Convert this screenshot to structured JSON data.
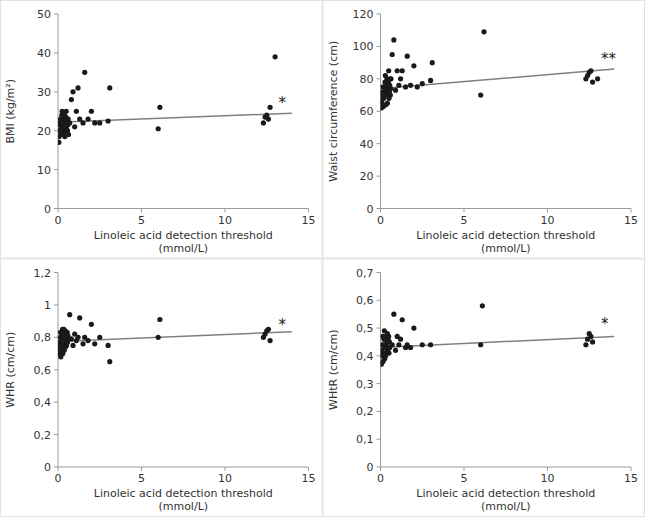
{
  "chart_data": [
    {
      "type": "scatter",
      "xlabel": "Linoleic acid detection threshold\n(mmol/L)",
      "ylabel": "BMI (kg/m²)",
      "xlim": [
        0,
        15
      ],
      "xticks": [
        0,
        5,
        10,
        15
      ],
      "ylim": [
        0,
        50
      ],
      "yticks": [
        0,
        10,
        20,
        30,
        40,
        50
      ],
      "grid": false,
      "series": [
        {
          "type": "scatter",
          "color": "#1a1a1a",
          "x": [
            0.05,
            0.07,
            0.09,
            0.11,
            0.13,
            0.15,
            0.17,
            0.19,
            0.21,
            0.23,
            0.25,
            0.27,
            0.29,
            0.31,
            0.33,
            0.35,
            0.37,
            0.39,
            0.41,
            0.43,
            0.45,
            0.47,
            0.49,
            0.51,
            0.53,
            0.55,
            0.57,
            0.59,
            0.61,
            0.63,
            0.7,
            0.8,
            0.9,
            1.0,
            1.1,
            1.2,
            1.3,
            1.5,
            1.6,
            1.8,
            2.0,
            2.2,
            2.5,
            3.0,
            3.1,
            6.0,
            6.1,
            12.3,
            12.4,
            12.5,
            12.6,
            12.7,
            13.0
          ],
          "values": [
            17.0,
            18.5,
            20.0,
            21.5,
            22.0,
            23.0,
            19.0,
            20.5,
            22.5,
            24.0,
            25.0,
            21.0,
            22.0,
            23.5,
            19.5,
            21.0,
            22.5,
            24.0,
            18.5,
            20.0,
            22.0,
            23.5,
            25.0,
            20.5,
            22.0,
            23.0,
            20.0,
            21.5,
            23.0,
            19.0,
            22.0,
            28.0,
            30.0,
            21.0,
            25.0,
            31.0,
            23.0,
            22.0,
            35.0,
            23.0,
            25.0,
            22.0,
            22.0,
            22.5,
            31.0,
            20.5,
            26.0,
            22.0,
            23.5,
            24.0,
            23.0,
            26.0,
            39.0
          ]
        },
        {
          "type": "line",
          "color": "#808080",
          "x": [
            0,
            14
          ],
          "values": [
            22.2,
            24.5
          ]
        }
      ],
      "annotations": [
        {
          "text": "*",
          "x": 13.2,
          "y": 27.0
        }
      ]
    },
    {
      "type": "scatter",
      "xlabel": "Linoleic acid detection threshold\n(mmol/L)",
      "ylabel": "Waist circumference (cm)",
      "xlim": [
        0,
        15
      ],
      "xticks": [
        0,
        5,
        10,
        15
      ],
      "ylim": [
        0,
        120
      ],
      "yticks": [
        0,
        20,
        40,
        60,
        80,
        100,
        120
      ],
      "grid": false,
      "series": [
        {
          "type": "scatter",
          "color": "#1a1a1a",
          "x": [
            0.05,
            0.07,
            0.09,
            0.11,
            0.13,
            0.15,
            0.17,
            0.19,
            0.21,
            0.23,
            0.25,
            0.27,
            0.29,
            0.31,
            0.33,
            0.35,
            0.37,
            0.39,
            0.41,
            0.43,
            0.45,
            0.47,
            0.49,
            0.51,
            0.53,
            0.55,
            0.57,
            0.59,
            0.61,
            0.63,
            0.7,
            0.8,
            0.9,
            1.0,
            1.1,
            1.2,
            1.3,
            1.5,
            1.6,
            1.8,
            2.0,
            2.2,
            2.5,
            3.0,
            3.1,
            6.0,
            6.2,
            12.3,
            12.4,
            12.5,
            12.6,
            12.7,
            13.0
          ],
          "values": [
            62.0,
            65.0,
            67.0,
            70.0,
            72.0,
            75.0,
            63.0,
            68.0,
            70.0,
            72.0,
            75.0,
            78.0,
            82.0,
            64.0,
            70.0,
            73.0,
            76.0,
            80.0,
            65.0,
            72.0,
            75.0,
            78.0,
            85.0,
            68.0,
            72.0,
            76.0,
            80.0,
            70.0,
            74.0,
            80.0,
            95.0,
            104.0,
            73.0,
            85.0,
            76.0,
            80.0,
            85.0,
            75.0,
            94.0,
            76.0,
            88.0,
            75.0,
            77.0,
            79.0,
            90.0,
            70.0,
            109.0,
            80.0,
            82.0,
            84.0,
            85.0,
            78.0,
            80.0
          ]
        },
        {
          "type": "line",
          "color": "#808080",
          "x": [
            0,
            14
          ],
          "values": [
            74.0,
            86.0
          ]
        }
      ],
      "annotations": [
        {
          "text": "**",
          "x": 13.2,
          "y": 92.0
        }
      ]
    },
    {
      "type": "scatter",
      "xlabel": "Linoleic acid detection threshold\n(mmol/L)",
      "ylabel": "WHR (cm/cm)",
      "xlim": [
        0,
        15
      ],
      "xticks": [
        0,
        5,
        10,
        15
      ],
      "ylim": [
        0,
        1.2
      ],
      "yticks": [
        0,
        {
          "value": 0.2,
          "label": "0,2"
        },
        {
          "value": 0.4,
          "label": "0,4"
        },
        {
          "value": 0.6,
          "label": "0,6"
        },
        {
          "value": 0.8,
          "label": "0,8"
        },
        1,
        {
          "value": 1.2,
          "label": "1,2"
        }
      ],
      "grid": false,
      "series": [
        {
          "type": "scatter",
          "color": "#1a1a1a",
          "x": [
            0.05,
            0.07,
            0.09,
            0.11,
            0.13,
            0.15,
            0.17,
            0.19,
            0.21,
            0.23,
            0.25,
            0.27,
            0.29,
            0.31,
            0.33,
            0.35,
            0.37,
            0.39,
            0.41,
            0.43,
            0.45,
            0.47,
            0.49,
            0.51,
            0.53,
            0.55,
            0.57,
            0.59,
            0.7,
            0.8,
            0.9,
            1.0,
            1.1,
            1.2,
            1.3,
            1.5,
            1.6,
            1.8,
            2.0,
            2.2,
            2.5,
            3.0,
            3.1,
            6.0,
            6.1,
            12.3,
            12.4,
            12.5,
            12.6,
            12.7
          ],
          "values": [
            0.7,
            0.72,
            0.75,
            0.77,
            0.8,
            0.83,
            0.68,
            0.73,
            0.76,
            0.79,
            0.82,
            0.85,
            0.7,
            0.75,
            0.8,
            0.85,
            0.72,
            0.76,
            0.8,
            0.84,
            0.74,
            0.78,
            0.82,
            0.75,
            0.79,
            0.83,
            0.77,
            0.81,
            0.94,
            0.79,
            0.75,
            0.82,
            0.78,
            0.8,
            0.92,
            0.76,
            0.8,
            0.78,
            0.88,
            0.76,
            0.8,
            0.75,
            0.65,
            0.8,
            0.91,
            0.8,
            0.82,
            0.84,
            0.85,
            0.78
          ]
        },
        {
          "type": "line",
          "color": "#808080",
          "x": [
            0,
            14
          ],
          "values": [
            0.775,
            0.835
          ]
        }
      ],
      "annotations": [
        {
          "text": "*",
          "x": 13.2,
          "y": 0.875
        }
      ]
    },
    {
      "type": "scatter",
      "xlabel": "Linoleic acid detection threshold\n(mmol/L)",
      "ylabel": "WHtR (cm/cm)",
      "xlim": [
        0,
        15
      ],
      "xticks": [
        0,
        5,
        10,
        15
      ],
      "ylim": [
        0,
        0.7
      ],
      "yticks": [
        0,
        {
          "value": 0.1,
          "label": "0,1"
        },
        {
          "value": 0.2,
          "label": "0,2"
        },
        {
          "value": 0.3,
          "label": "0,3"
        },
        {
          "value": 0.4,
          "label": "0,4"
        },
        {
          "value": 0.5,
          "label": "0,5"
        },
        {
          "value": 0.6,
          "label": "0,6"
        },
        {
          "value": 0.7,
          "label": "0,7"
        }
      ],
      "grid": false,
      "series": [
        {
          "type": "scatter",
          "color": "#1a1a1a",
          "x": [
            0.05,
            0.07,
            0.09,
            0.11,
            0.13,
            0.15,
            0.17,
            0.19,
            0.21,
            0.23,
            0.25,
            0.27,
            0.29,
            0.31,
            0.33,
            0.35,
            0.37,
            0.39,
            0.41,
            0.43,
            0.45,
            0.47,
            0.49,
            0.51,
            0.53,
            0.55,
            0.7,
            0.8,
            0.9,
            1.0,
            1.1,
            1.2,
            1.3,
            1.5,
            1.6,
            1.8,
            2.0,
            2.5,
            3.0,
            6.0,
            6.1,
            12.3,
            12.4,
            12.5,
            12.6,
            12.7
          ],
          "values": [
            0.37,
            0.4,
            0.42,
            0.44,
            0.47,
            0.38,
            0.41,
            0.44,
            0.46,
            0.49,
            0.39,
            0.43,
            0.46,
            0.4,
            0.44,
            0.47,
            0.41,
            0.45,
            0.48,
            0.42,
            0.46,
            0.43,
            0.47,
            0.41,
            0.45,
            0.43,
            0.44,
            0.55,
            0.42,
            0.47,
            0.44,
            0.46,
            0.53,
            0.43,
            0.44,
            0.43,
            0.5,
            0.44,
            0.44,
            0.44,
            0.58,
            0.44,
            0.46,
            0.48,
            0.47,
            0.45
          ]
        },
        {
          "type": "line",
          "color": "#808080",
          "x": [
            0,
            14
          ],
          "values": [
            0.43,
            0.47
          ]
        }
      ],
      "annotations": [
        {
          "text": "*",
          "x": 13.2,
          "y": 0.515
        }
      ]
    }
  ]
}
